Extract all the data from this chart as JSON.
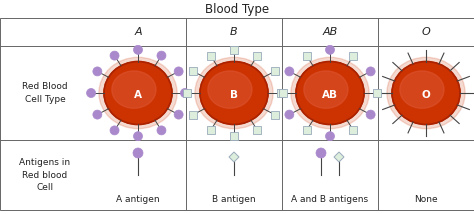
{
  "title": "Blood Type",
  "col_headers": [
    "A",
    "B",
    "AB",
    "O"
  ],
  "row_header_rbc": "Red Blood\nCell Type",
  "row_header_ant": "Antigens in\nRed blood\nCell",
  "antigen_labels": [
    "A antigen",
    "B antigen",
    "A and B antigens",
    "None"
  ],
  "bg_color": "#ffffff",
  "border_color": "#666666",
  "rbc_outer_color": "#cc3300",
  "rbc_dark_color": "#aa2200",
  "rbc_highlight_color": "#dd5533",
  "antigen_a_color": "#aa88cc",
  "antigen_a_edge": "#9966aa",
  "antigen_b_face": "#ddeedd",
  "antigen_b_edge": "#99aabb",
  "spine_color": "#444444",
  "label_color": "#222222",
  "none_label_color": "#444444",
  "title_fontsize": 8.5,
  "header_fontsize": 8,
  "row_label_fontsize": 6.5,
  "antigen_label_fontsize": 6.5,
  "fig_width": 4.74,
  "fig_height": 2.14,
  "dpi": 100
}
